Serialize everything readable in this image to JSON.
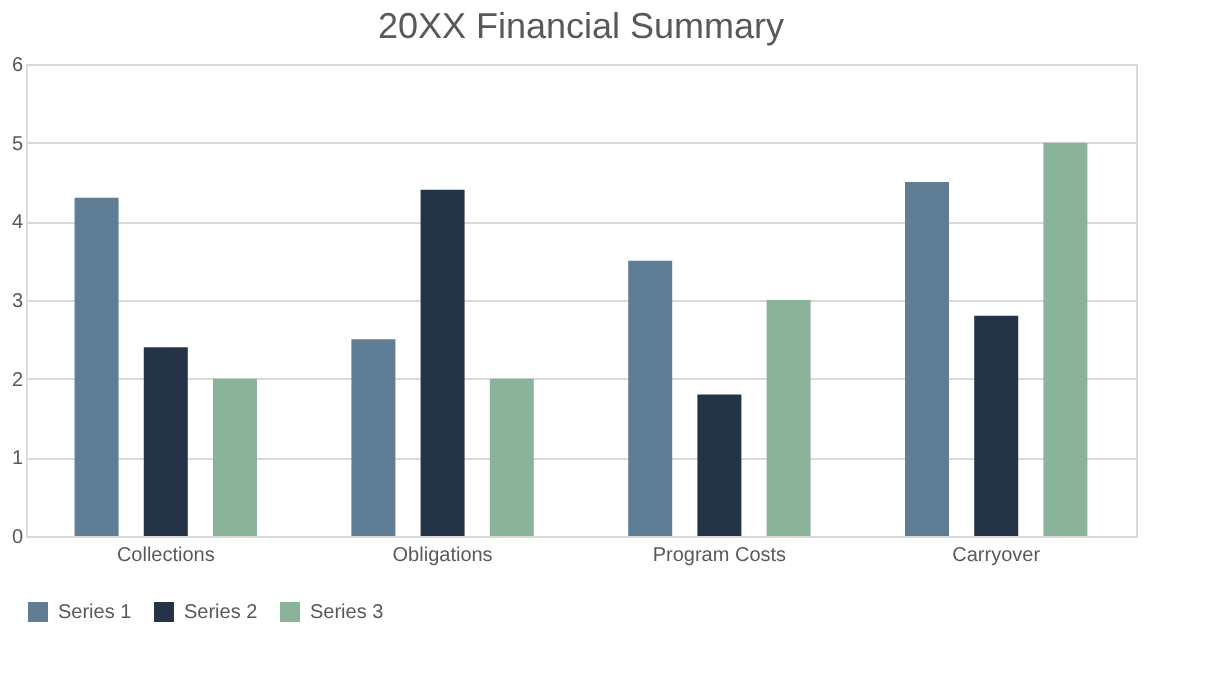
{
  "chart_data": {
    "type": "bar",
    "title": "20XX Financial Summary",
    "categories": [
      "Collections",
      "Obligations",
      "Program Costs",
      "Carryover"
    ],
    "series": [
      {
        "name": "Series 1",
        "color": "#5f7d95",
        "values": [
          4.3,
          2.5,
          3.5,
          4.5
        ]
      },
      {
        "name": "Series 2",
        "color": "#243446",
        "values": [
          2.4,
          4.4,
          1.8,
          2.8
        ]
      },
      {
        "name": "Series 3",
        "color": "#8bb39a",
        "values": [
          2,
          2,
          3,
          5
        ]
      }
    ],
    "ylim": [
      0,
      6
    ],
    "yticks": [
      0,
      1,
      2,
      3,
      4,
      5,
      6
    ],
    "grid": "y",
    "legend": "bottom"
  }
}
